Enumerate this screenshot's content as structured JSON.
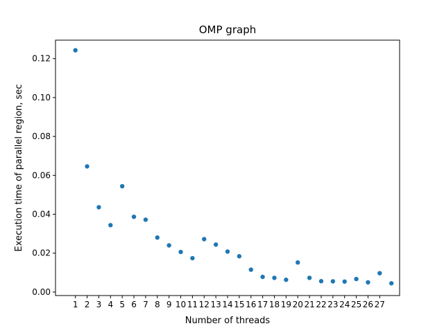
{
  "chart_data": {
    "type": "scatter",
    "title": "OMP graph",
    "xlabel": "Number of threads",
    "ylabel": "Execution time of parallel region, sec",
    "x_tick_labels": [
      "1",
      "2",
      "3",
      "4",
      "5",
      "6",
      "7",
      "8",
      "9",
      "10",
      "11",
      "12",
      "13",
      "14",
      "15",
      "16",
      "17",
      "18",
      "19",
      "20",
      "21",
      "22",
      "23",
      "24",
      "25",
      "26",
      "27"
    ],
    "y_tick_labels": [
      "0.00",
      "0.02",
      "0.04",
      "0.06",
      "0.08",
      "0.10",
      "0.12"
    ],
    "y_ticks": [
      0.0,
      0.02,
      0.04,
      0.06,
      0.08,
      0.1,
      0.12
    ],
    "xlim": [
      -0.7,
      28.7
    ],
    "ylim": [
      -0.0018,
      0.1295
    ],
    "grid": false,
    "point_color": "#1f77b4",
    "points": {
      "x": [
        1,
        2,
        3,
        4,
        5,
        6,
        7,
        8,
        9,
        10,
        11,
        12,
        13,
        14,
        15,
        16,
        17,
        18,
        19,
        20,
        21,
        22,
        23,
        24,
        25,
        26,
        27,
        28
      ],
      "y": [
        0.1243,
        0.0646,
        0.0436,
        0.0344,
        0.0544,
        0.0387,
        0.0372,
        0.028,
        0.024,
        0.0206,
        0.0174,
        0.0272,
        0.0244,
        0.0208,
        0.0184,
        0.0115,
        0.0078,
        0.0073,
        0.0063,
        0.0152,
        0.0073,
        0.0056,
        0.0055,
        0.0054,
        0.0067,
        0.005,
        0.0097,
        0.0045
      ]
    }
  }
}
